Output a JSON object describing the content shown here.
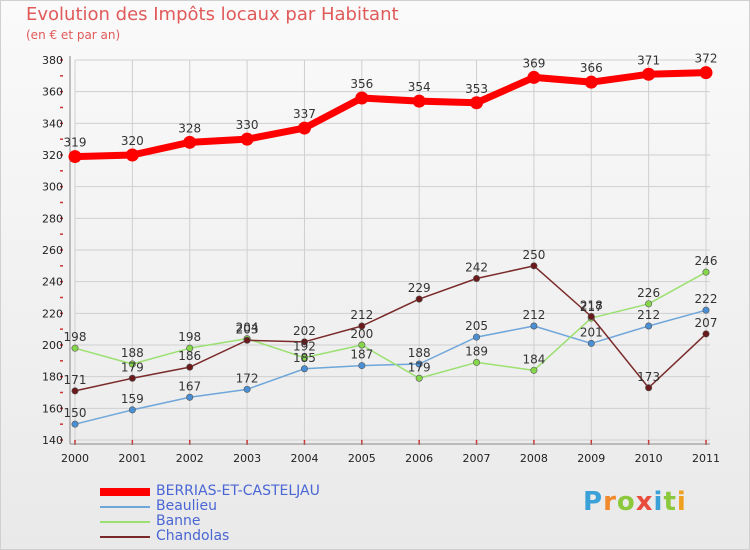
{
  "title": "Evolution des Impôts locaux par Habitant",
  "subtitle": "(en € et par an)",
  "logo": [
    "P",
    "r",
    "o",
    "x",
    "i",
    "t",
    "i"
  ],
  "logo_colors": [
    "#3aa0d8",
    "#f08a2c",
    "#8cc83c",
    "#e84c3c",
    "#3aa0d8",
    "#8cc83c",
    "#f0a020"
  ],
  "chart_data": {
    "type": "line",
    "title": "Evolution des Impôts locaux par Habitant",
    "subtitle": "(en € et par an)",
    "xlabel": "",
    "ylabel": "",
    "x": [
      "2000",
      "2001",
      "2002",
      "2003",
      "2004",
      "2005",
      "2006",
      "2007",
      "2008",
      "2009",
      "2010",
      "2011"
    ],
    "ylim": [
      140,
      380
    ],
    "yticks": [
      140,
      160,
      180,
      200,
      220,
      240,
      260,
      280,
      300,
      320,
      340,
      360,
      380
    ],
    "grid": true,
    "legend_position": "bottom-left",
    "series": [
      {
        "name": "BERRIAS-ET-CASTELJAU",
        "color": "#ff0000",
        "width": 7,
        "markerColor": "#ff0000",
        "values": [
          319,
          320,
          328,
          330,
          337,
          356,
          354,
          353,
          369,
          366,
          371,
          372
        ]
      },
      {
        "name": "Beaulieu",
        "color": "#6fa6da",
        "width": 1.5,
        "markerColor": "#4a8fd4",
        "values": [
          150,
          159,
          167,
          172,
          185,
          187,
          188,
          205,
          212,
          201,
          212,
          222
        ]
      },
      {
        "name": "Banne",
        "color": "#9be070",
        "width": 1.5,
        "markerColor": "#86d64c",
        "values": [
          198,
          188,
          198,
          204,
          192,
          200,
          179,
          189,
          184,
          217,
          226,
          246
        ]
      },
      {
        "name": "Chandolas",
        "color": "#7a2a2a",
        "width": 1.5,
        "markerColor": "#6a1a1a",
        "values": [
          171,
          179,
          186,
          203,
          202,
          212,
          229,
          242,
          250,
          218,
          173,
          207
        ]
      }
    ]
  }
}
